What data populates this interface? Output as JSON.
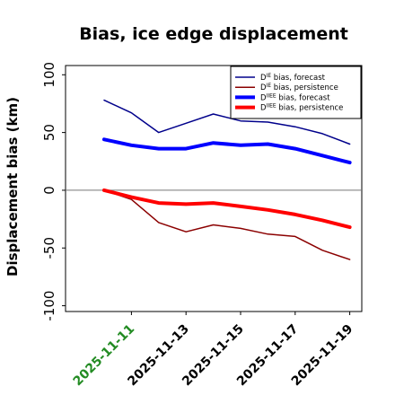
{
  "chart_data": {
    "type": "line",
    "title": "Bias, ice edge displacement",
    "xlabel": "",
    "ylabel": "Displacement bias (km)",
    "x": [
      "2025-11-10",
      "2025-11-11",
      "2025-11-12",
      "2025-11-13",
      "2025-11-14",
      "2025-11-15",
      "2025-11-16",
      "2025-11-17",
      "2025-11-18",
      "2025-11-19"
    ],
    "xticks": [
      "2025-11-11",
      "2025-11-13",
      "2025-11-15",
      "2025-11-17",
      "2025-11-19"
    ],
    "highlight_tick": "2025-11-11",
    "highlight_color": "#228B22",
    "ylim": [
      -105,
      108
    ],
    "yticks": [
      -100,
      -50,
      0,
      50,
      100
    ],
    "zero_line": true,
    "grid": false,
    "legend_position": "top-right",
    "series": [
      {
        "name": "D^IE bias, forecast",
        "color": "#00008B",
        "width": 1.5,
        "legend_sup": "IE",
        "values": [
          78,
          67,
          50,
          58,
          66,
          60,
          59,
          55,
          49,
          40
        ]
      },
      {
        "name": "D^IE bias, persistence",
        "color": "#8B0000",
        "width": 1.5,
        "legend_sup": "IE",
        "values": [
          0,
          -8,
          -28,
          -36,
          -30,
          -33,
          -38,
          -40,
          -52,
          -60
        ]
      },
      {
        "name": "D^IIEE bias, forecast",
        "color": "#0000FF",
        "width": 4,
        "legend_sup": "IIEE",
        "values": [
          44,
          39,
          36,
          36,
          41,
          39,
          40,
          36,
          30,
          24
        ]
      },
      {
        "name": "D^IIEE bias, persistence",
        "color": "#FF0000",
        "width": 4,
        "legend_sup": "IIEE",
        "values": [
          0,
          -6,
          -11,
          -12,
          -11,
          -14,
          -17,
          -21,
          -26,
          -32
        ]
      }
    ]
  }
}
